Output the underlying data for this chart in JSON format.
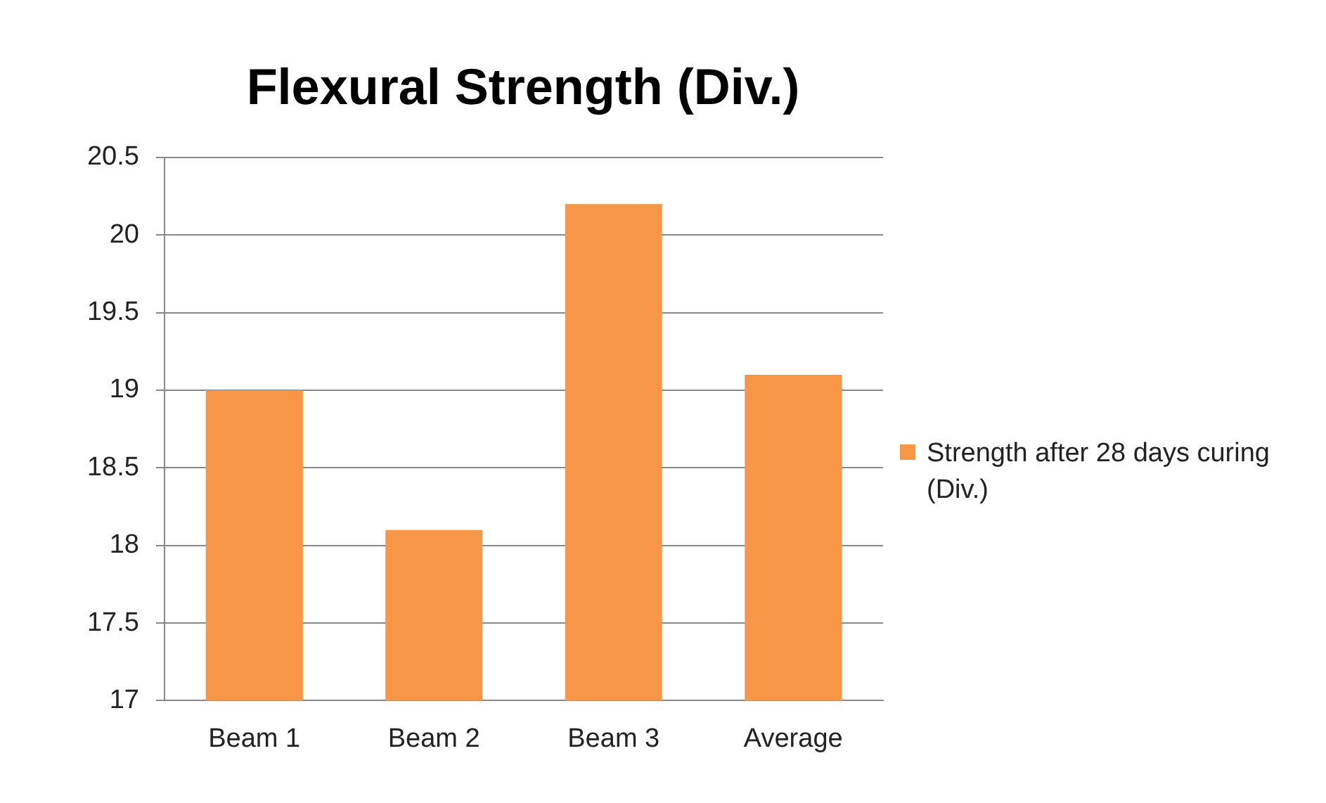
{
  "chart_data": {
    "type": "bar",
    "title": "Flexural Strength (Div.)",
    "categories": [
      "Beam 1",
      "Beam 2",
      "Beam 3",
      "Average"
    ],
    "series": [
      {
        "name": "Strength after 28 days curing  (Div.)",
        "color": "#f79646",
        "values": [
          19.0,
          18.1,
          20.2,
          19.1
        ]
      }
    ],
    "ylim": [
      17,
      20.5
    ],
    "yticks": [
      17,
      17.5,
      18,
      18.5,
      19,
      19.5,
      20,
      20.5
    ],
    "grid": "y",
    "legend": "right"
  }
}
